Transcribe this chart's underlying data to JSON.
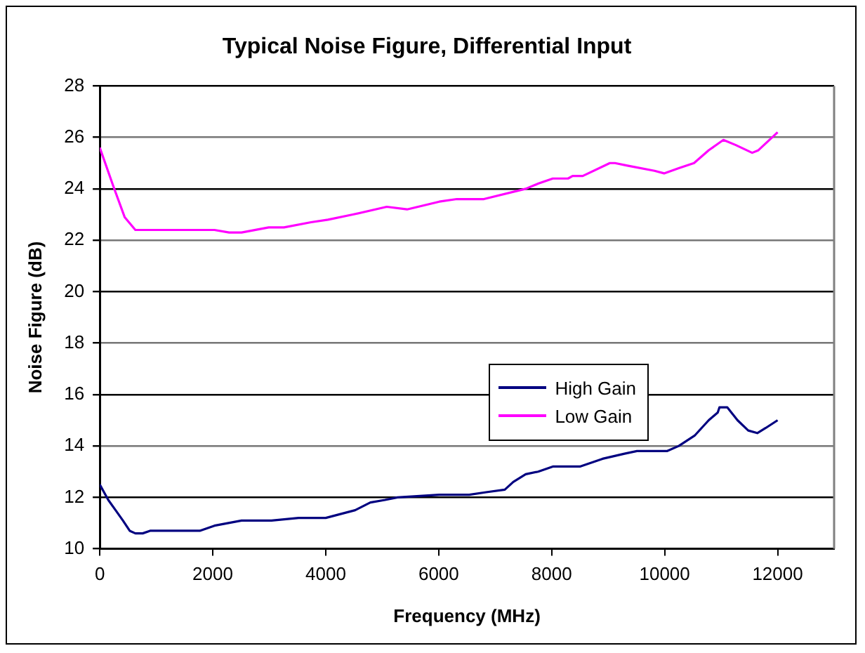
{
  "chart_data": {
    "type": "line",
    "title": "Typical Noise Figure, Differential Input",
    "xlabel": "Frequency (MHz)",
    "ylabel": "Noise Figure (dB)",
    "xlim": [
      0,
      13000
    ],
    "xticks": [
      0,
      2000,
      4000,
      6000,
      8000,
      10000,
      12000
    ],
    "ylim": [
      10,
      28
    ],
    "yticks": [
      10,
      12,
      14,
      16,
      18,
      20,
      22,
      24,
      26,
      28
    ],
    "grid": "y",
    "legend": "right",
    "marker": "none",
    "line_style": "solid",
    "series": [
      {
        "name": "High Gain",
        "color": "#000080",
        "x": [
          0,
          150,
          280,
          410,
          530,
          630,
          760,
          890,
          1500,
          1770,
          2030,
          2510,
          3040,
          3520,
          3780,
          4000,
          4520,
          4790,
          5050,
          5270,
          6010,
          6540,
          6840,
          7170,
          7320,
          7540,
          7760,
          8020,
          8500,
          8900,
          9290,
          9510,
          10040,
          10250,
          10530,
          10780,
          10940,
          10970,
          11110,
          11290,
          11480,
          11640,
          11790,
          12000
        ],
        "values": [
          12.5,
          11.9,
          11.5,
          11.1,
          10.7,
          10.6,
          10.6,
          10.7,
          10.7,
          10.7,
          10.9,
          11.1,
          11.1,
          11.2,
          11.2,
          11.2,
          11.5,
          11.8,
          11.9,
          12.0,
          12.1,
          12.1,
          12.2,
          12.3,
          12.6,
          12.9,
          13.0,
          13.2,
          13.2,
          13.5,
          13.7,
          13.8,
          13.8,
          14.0,
          14.4,
          15.0,
          15.3,
          15.5,
          15.5,
          15.0,
          14.6,
          14.5,
          14.7,
          15.0
        ]
      },
      {
        "name": "Low Gain",
        "color": "#ff00ff",
        "x": [
          0,
          240,
          440,
          630,
          2030,
          2290,
          2510,
          2990,
          3260,
          3740,
          4040,
          4480,
          5080,
          5440,
          6010,
          6320,
          6800,
          7540,
          7760,
          8020,
          8290,
          8370,
          8550,
          9030,
          9120,
          9340,
          9820,
          9990,
          10250,
          10520,
          10780,
          11040,
          11260,
          11550,
          11660,
          12000
        ],
        "values": [
          25.6,
          24.1,
          22.9,
          22.4,
          22.4,
          22.3,
          22.3,
          22.5,
          22.5,
          22.7,
          22.8,
          23.0,
          23.3,
          23.2,
          23.5,
          23.6,
          23.6,
          24.0,
          24.2,
          24.4,
          24.4,
          24.5,
          24.5,
          25.0,
          25.0,
          24.9,
          24.7,
          24.6,
          24.8,
          25.0,
          25.5,
          25.9,
          25.7,
          25.4,
          25.5,
          26.2
        ]
      }
    ]
  }
}
